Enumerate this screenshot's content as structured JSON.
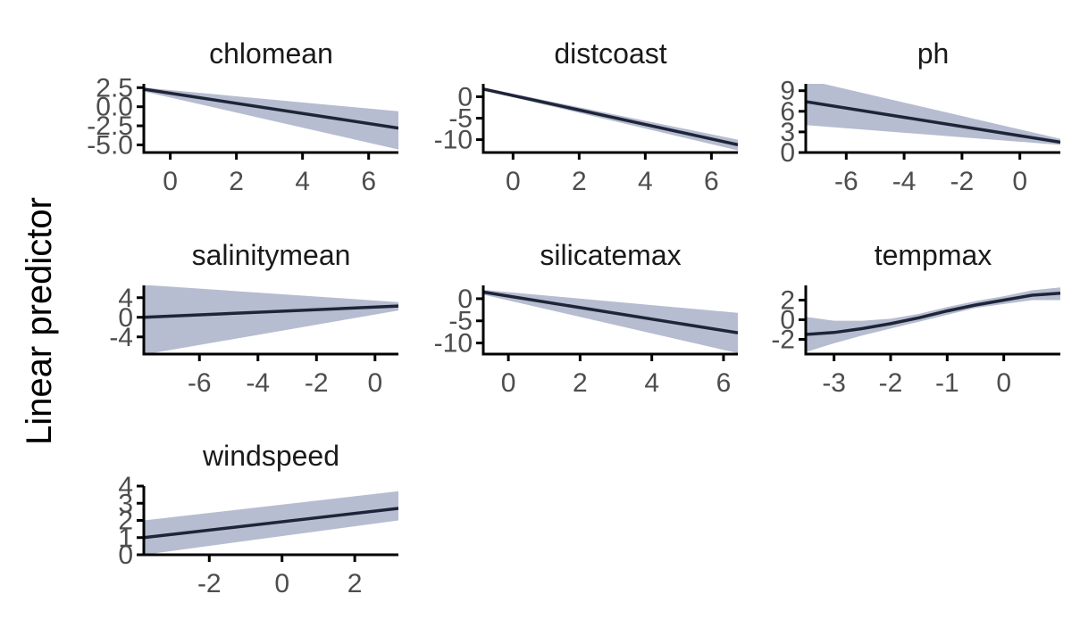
{
  "figure": {
    "ylabel": "Linear predictor"
  },
  "colors": {
    "ribbon": "#b6bdd1",
    "line": "#1e2538",
    "axis": "#000000",
    "tick_text": "#4d4d4d"
  },
  "chart_data": [
    {
      "type": "line",
      "title": "chlomean",
      "xlim": [
        -0.8,
        6.9
      ],
      "ylim": [
        -6.0,
        3.0
      ],
      "xticks": [
        0,
        2,
        4,
        6
      ],
      "yticks": [
        -5.0,
        -2.5,
        0.0,
        2.5
      ],
      "ytick_labels": [
        "-5.0",
        "-2.5",
        "0.0",
        "2.5"
      ],
      "x": [
        -0.8,
        6.9
      ],
      "y": [
        2.3,
        -2.8
      ],
      "lower": [
        2.0,
        -5.6
      ],
      "upper": [
        2.5,
        -0.6
      ]
    },
    {
      "type": "line",
      "title": "distcoast",
      "xlim": [
        -0.9,
        6.8
      ],
      "ylim": [
        -13.0,
        3.0
      ],
      "xticks": [
        0,
        2,
        4,
        6
      ],
      "yticks": [
        -10,
        -5,
        0
      ],
      "ytick_labels": [
        "-10",
        "-5",
        "0"
      ],
      "x": [
        -0.9,
        6.8
      ],
      "y": [
        1.8,
        -11.2
      ],
      "lower": [
        1.5,
        -12.5
      ],
      "upper": [
        2.1,
        -10.0
      ]
    },
    {
      "type": "line",
      "title": "ph",
      "xlim": [
        -7.4,
        1.4
      ],
      "ylim": [
        0.0,
        10.0
      ],
      "xticks": [
        -6,
        -4,
        -2,
        0
      ],
      "yticks": [
        0,
        3,
        6,
        9
      ],
      "ytick_labels": [
        "0",
        "3",
        "6",
        "9"
      ],
      "x": [
        -7.4,
        1.4
      ],
      "y": [
        7.4,
        1.5
      ],
      "lower": [
        4.0,
        1.1
      ],
      "upper": [
        10.6,
        2.0
      ]
    },
    {
      "type": "line",
      "title": "salinitymean",
      "xlim": [
        -7.9,
        0.8
      ],
      "ylim": [
        -7.5,
        6.5
      ],
      "xticks": [
        -6,
        -4,
        -2,
        0
      ],
      "yticks": [
        -4,
        0,
        4
      ],
      "ytick_labels": [
        "-4",
        "0",
        "4"
      ],
      "x": [
        -7.9,
        0.8
      ],
      "y": [
        0.0,
        2.3
      ],
      "lower": [
        -7.6,
        1.4
      ],
      "upper": [
        6.6,
        3.1
      ]
    },
    {
      "type": "line",
      "title": "silicatemax",
      "xlim": [
        -0.7,
        6.4
      ],
      "ylim": [
        -12.5,
        3.0
      ],
      "xticks": [
        0,
        2,
        4,
        6
      ],
      "yticks": [
        -10,
        -5,
        0
      ],
      "ytick_labels": [
        "-10",
        "-5",
        "0"
      ],
      "x": [
        -0.7,
        6.4
      ],
      "y": [
        1.5,
        -7.7
      ],
      "lower": [
        0.9,
        -12.3
      ],
      "upper": [
        2.0,
        -3.2
      ]
    },
    {
      "type": "line",
      "title": "tempmax",
      "xlim": [
        -3.5,
        1.0
      ],
      "ylim": [
        -3.5,
        3.5
      ],
      "xticks": [
        -3,
        -2,
        -1,
        0
      ],
      "yticks": [
        -2,
        0,
        2
      ],
      "ytick_labels": [
        "-2",
        "0",
        "2"
      ],
      "x": [
        -3.5,
        -3.0,
        -2.5,
        -2.0,
        -1.5,
        -1.0,
        -0.5,
        0.0,
        0.5,
        1.0
      ],
      "y": [
        -1.5,
        -1.3,
        -0.9,
        -0.4,
        0.2,
        0.9,
        1.5,
        2.0,
        2.5,
        2.7
      ],
      "lower": [
        -3.3,
        -2.4,
        -1.6,
        -0.9,
        -0.2,
        0.5,
        1.2,
        1.6,
        2.0,
        2.0
      ],
      "upper": [
        0.3,
        -0.1,
        -0.1,
        0.1,
        0.6,
        1.3,
        1.9,
        2.4,
        3.0,
        3.3
      ]
    },
    {
      "type": "line",
      "title": "windspeed",
      "xlim": [
        -3.8,
        3.2
      ],
      "ylim": [
        0.0,
        4.0
      ],
      "xticks": [
        -2,
        0,
        2
      ],
      "yticks": [
        0,
        1,
        2,
        3,
        4
      ],
      "ytick_labels": [
        "0",
        "1",
        "2",
        "3",
        "4"
      ],
      "x": [
        -3.8,
        3.2
      ],
      "y": [
        1.0,
        2.7
      ],
      "lower": [
        0.0,
        2.0
      ],
      "upper": [
        2.0,
        3.7
      ]
    }
  ]
}
